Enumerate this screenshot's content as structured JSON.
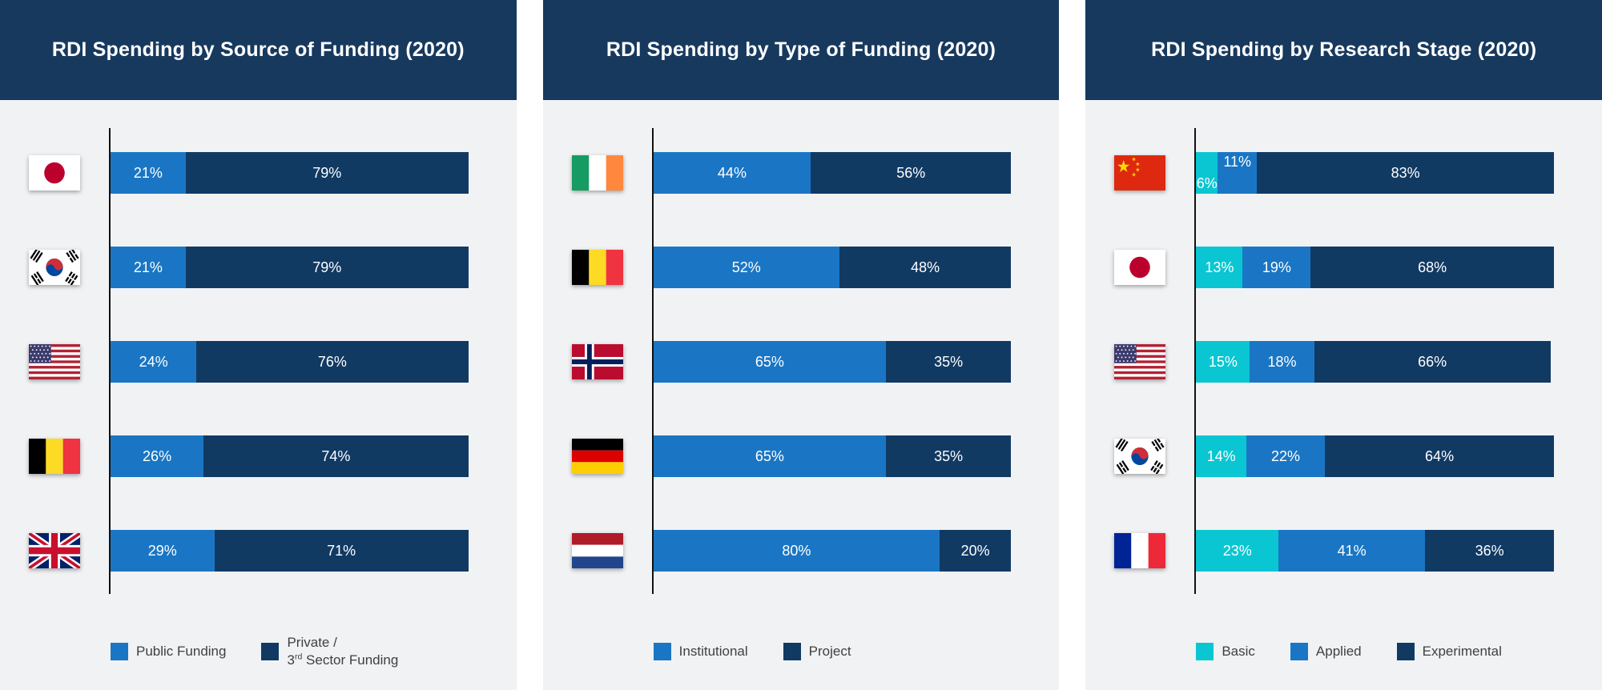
{
  "theme": {
    "page_background": "#ffffff",
    "panel_background": "#f1f2f4",
    "header_background": "#17395e",
    "axis_color": "#111111",
    "bar_label_color": "#ffffff",
    "legend_text_color": "#404040",
    "color_cyan": "#0ac6d2",
    "color_mid_blue": "#1a76c4",
    "color_dark_navy": "#113a63"
  },
  "chart_data": [
    {
      "type": "bar",
      "orientation": "horizontal",
      "stacked": true,
      "title": "RDI Spending by Source of Funding (2020)",
      "unit": "%",
      "xlim": [
        0,
        100
      ],
      "grid": false,
      "legend_position": "bottom",
      "categories": [
        "Japan",
        "South Korea",
        "United States",
        "Belgium",
        "United Kingdom"
      ],
      "category_flags": [
        "jp",
        "kr",
        "us",
        "be",
        "gb"
      ],
      "series": [
        {
          "name": "Public Funding",
          "color": "#1a76c4",
          "values": [
            21,
            21,
            24,
            26,
            29
          ]
        },
        {
          "name": "Private / 3rd Sector Funding",
          "color": "#113a63",
          "legend_two_line": true,
          "values": [
            79,
            79,
            76,
            74,
            71
          ]
        }
      ]
    },
    {
      "type": "bar",
      "orientation": "horizontal",
      "stacked": true,
      "title": "RDI Spending by Type of Funding (2020)",
      "unit": "%",
      "xlim": [
        0,
        100
      ],
      "grid": false,
      "legend_position": "bottom",
      "categories": [
        "Ireland",
        "Belgium",
        "Norway",
        "Germany",
        "Netherlands"
      ],
      "category_flags": [
        "ie",
        "be",
        "no",
        "de",
        "nl"
      ],
      "series": [
        {
          "name": "Institutional",
          "color": "#1a76c4",
          "values": [
            44,
            52,
            65,
            65,
            80
          ]
        },
        {
          "name": "Project",
          "color": "#113a63",
          "values": [
            56,
            48,
            35,
            35,
            20
          ]
        }
      ]
    },
    {
      "type": "bar",
      "orientation": "horizontal",
      "stacked": true,
      "title": "RDI Spending by Research Stage (2020)",
      "unit": "%",
      "xlim": [
        0,
        100
      ],
      "grid": false,
      "legend_position": "bottom",
      "categories": [
        "China",
        "Japan",
        "United States",
        "South Korea",
        "France"
      ],
      "category_flags": [
        "cn",
        "jp",
        "us",
        "kr",
        "fr"
      ],
      "stagger_rows": [
        0
      ],
      "series": [
        {
          "name": "Basic",
          "color": "#0ac6d2",
          "values": [
            6,
            13,
            15,
            14,
            23
          ]
        },
        {
          "name": "Applied",
          "color": "#1a76c4",
          "values": [
            11,
            19,
            18,
            22,
            41
          ]
        },
        {
          "name": "Experimental",
          "color": "#113a63",
          "values": [
            83,
            68,
            66,
            64,
            36
          ]
        }
      ]
    }
  ]
}
